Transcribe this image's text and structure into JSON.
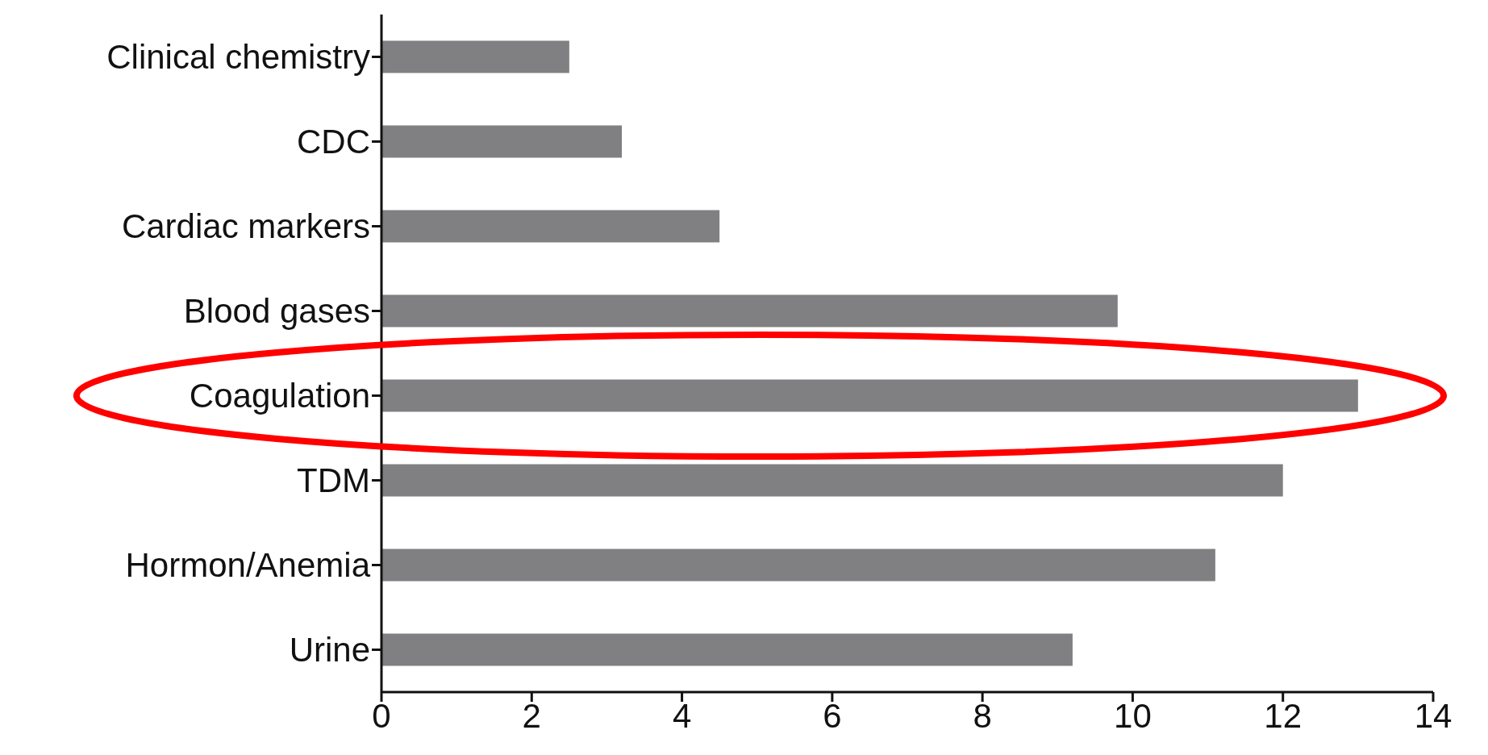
{
  "chart_data": {
    "type": "bar",
    "orientation": "horizontal",
    "categories": [
      "Clinical chemistry",
      "CDC",
      "Cardiac markers",
      "Blood gases",
      "Coagulation",
      "TDM",
      "Hormon/Anemia",
      "Urine"
    ],
    "values": [
      2.5,
      3.2,
      4.5,
      9.8,
      13,
      12,
      11.1,
      9.2
    ],
    "color": "#808083",
    "xlim": [
      0,
      14
    ],
    "xticks": [
      0,
      2,
      4,
      6,
      8,
      10,
      12,
      14
    ]
  }
}
